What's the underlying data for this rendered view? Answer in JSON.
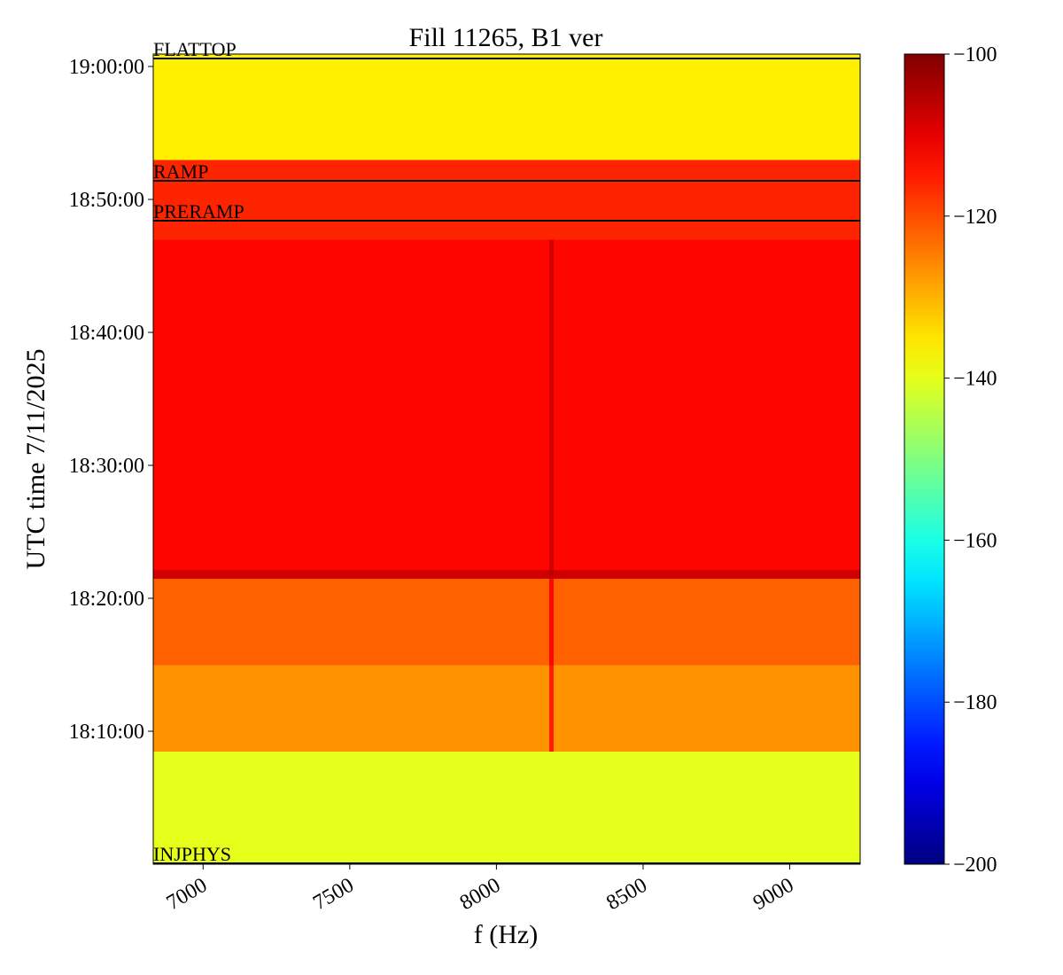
{
  "chart_data": {
    "type": "heatmap",
    "title": "Fill 11265, B1 ver",
    "x_label": "f (Hz)",
    "y_label": "UTC time 7/11/2025",
    "colormap": "jet",
    "x_edges": [
      6830,
      8180,
      8195,
      9240
    ],
    "y_edges": [
      "18:00:00",
      "18:08:30",
      "18:15:00",
      "18:21:30",
      "18:22:10",
      "18:47:00",
      "18:53:00",
      "19:00:56"
    ],
    "values": [
      [
        -140,
        -140,
        -140
      ],
      [
        -127,
        -115,
        -127
      ],
      [
        -122,
        -113,
        -122
      ],
      [
        -108,
        -106,
        -108
      ],
      [
        -113,
        -108,
        -113
      ],
      [
        -116,
        -116,
        -116
      ],
      [
        -136,
        -136,
        -136
      ]
    ],
    "xlim": [
      6830,
      9240
    ],
    "xticks": [
      7000,
      7500,
      8000,
      8500,
      9000
    ],
    "ylim": [
      "18:00:00",
      "19:00:56"
    ],
    "yticks": [
      "18:10:00",
      "18:20:00",
      "18:30:00",
      "18:40:00",
      "18:50:00",
      "19:00:00"
    ],
    "clim": [
      -200,
      -100
    ],
    "cticks": [
      {
        "value": -100,
        "label": "−100"
      },
      {
        "value": -120,
        "label": "−120"
      },
      {
        "value": -140,
        "label": "−140"
      },
      {
        "value": -160,
        "label": "−160"
      },
      {
        "value": -180,
        "label": "−180"
      },
      {
        "value": -200,
        "label": "−200"
      }
    ],
    "annotations": [
      {
        "label": "FLATTOP",
        "time": "19:00:36"
      },
      {
        "label": "RAMP",
        "time": "18:51:24"
      },
      {
        "label": "PRERAMP",
        "time": "18:48:24"
      },
      {
        "label": "INJPHYS",
        "time": "18:00:04"
      }
    ]
  }
}
